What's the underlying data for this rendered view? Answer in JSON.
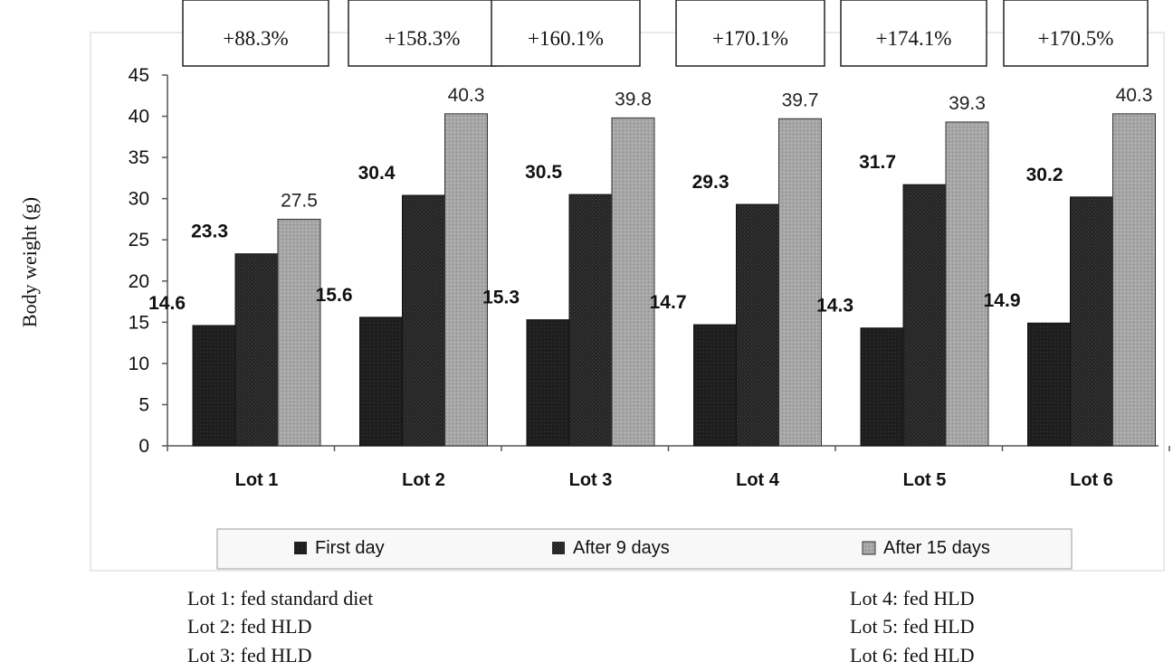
{
  "chart_data": {
    "type": "bar",
    "ylabel": "Body weight (g)",
    "ylim": [
      0,
      45
    ],
    "yticks": [
      0,
      5,
      10,
      15,
      20,
      25,
      30,
      35,
      40,
      45
    ],
    "categories": [
      "Lot 1",
      "Lot 2",
      "Lot 3",
      "Lot 4",
      "Lot 5",
      "Lot 6"
    ],
    "series": [
      {
        "name": "First day",
        "values": [
          14.6,
          15.6,
          15.3,
          14.7,
          14.3,
          14.9
        ],
        "labels": [
          "14.6",
          "15.6",
          "15.3",
          "14.7",
          "14.3",
          "14.9"
        ],
        "color": "#1c1c1c"
      },
      {
        "name": "After 9 days",
        "values": [
          23.3,
          30.4,
          30.5,
          29.3,
          31.7,
          30.2
        ],
        "labels": [
          "23.3",
          "30.4",
          "30.5",
          "29.3",
          "31.7",
          "30.2"
        ],
        "color": "#2a2a2a"
      },
      {
        "name": "After 15 days",
        "values": [
          27.5,
          40.3,
          39.8,
          39.7,
          39.3,
          40.3
        ],
        "labels": [
          "27.5",
          "40.3",
          "39.8",
          "39.7",
          "39.3",
          "40.3"
        ],
        "color": "#a9a9a9"
      }
    ],
    "annotations": [
      "+88.3%",
      "+158.3%",
      "+160.1%",
      "+170.1%",
      "+174.1%",
      "+170.5%"
    ],
    "legend_position": "bottom",
    "grid": false
  },
  "notes": {
    "left": [
      "Lot 1: fed standard diet",
      "Lot 2: fed HLD",
      "Lot 3: fed HLD"
    ],
    "right": [
      "Lot 4: fed HLD",
      "Lot 5: fed HLD",
      "Lot 6: fed HLD"
    ]
  }
}
